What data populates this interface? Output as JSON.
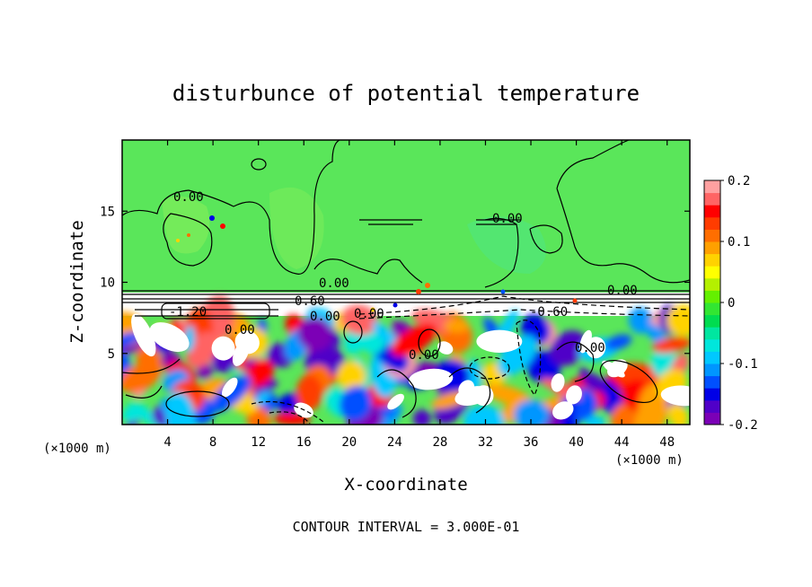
{
  "chart_data": {
    "type": "heatmap",
    "title": "disturbunce of potential temperature",
    "xlabel": "X-coordinate",
    "ylabel": "Z-coordinate",
    "x_unit": "(×1000 m)",
    "z_unit": "(×1000 m)",
    "xlim": [
      0,
      50
    ],
    "ylim": [
      0,
      20
    ],
    "x_ticks": [
      "4",
      "8",
      "12",
      "16",
      "20",
      "24",
      "28",
      "32",
      "36",
      "40",
      "44",
      "48"
    ],
    "y_ticks": [
      "5",
      "10",
      "15"
    ],
    "colorbar": {
      "range": [
        -0.2,
        0.2
      ],
      "tick_labels": [
        "0.2",
        "0.1",
        "0",
        "-0.1",
        "-0.2"
      ],
      "colors": [
        "#7b00b6",
        "#5000c8",
        "#0000e6",
        "#0050ff",
        "#0096ff",
        "#00c8ff",
        "#00e6dc",
        "#00e6a0",
        "#00dc50",
        "#32e632",
        "#64f000",
        "#b4f000",
        "#ffff00",
        "#ffd200",
        "#ffa000",
        "#ff6e00",
        "#ff3c00",
        "#ff0000",
        "#ff6464",
        "#ffa0a0"
      ]
    },
    "contour_labels": [
      "0.00",
      "0.00",
      "0.00",
      "0.00",
      "0.60",
      "0.00",
      "-1.20",
      "0.00",
      "-0.60",
      "0.00",
      "0.00",
      "0.00"
    ],
    "annotation": "CONTOUR INTERVAL = 3.000E-01",
    "grid": false,
    "legend": "colorbar right"
  }
}
